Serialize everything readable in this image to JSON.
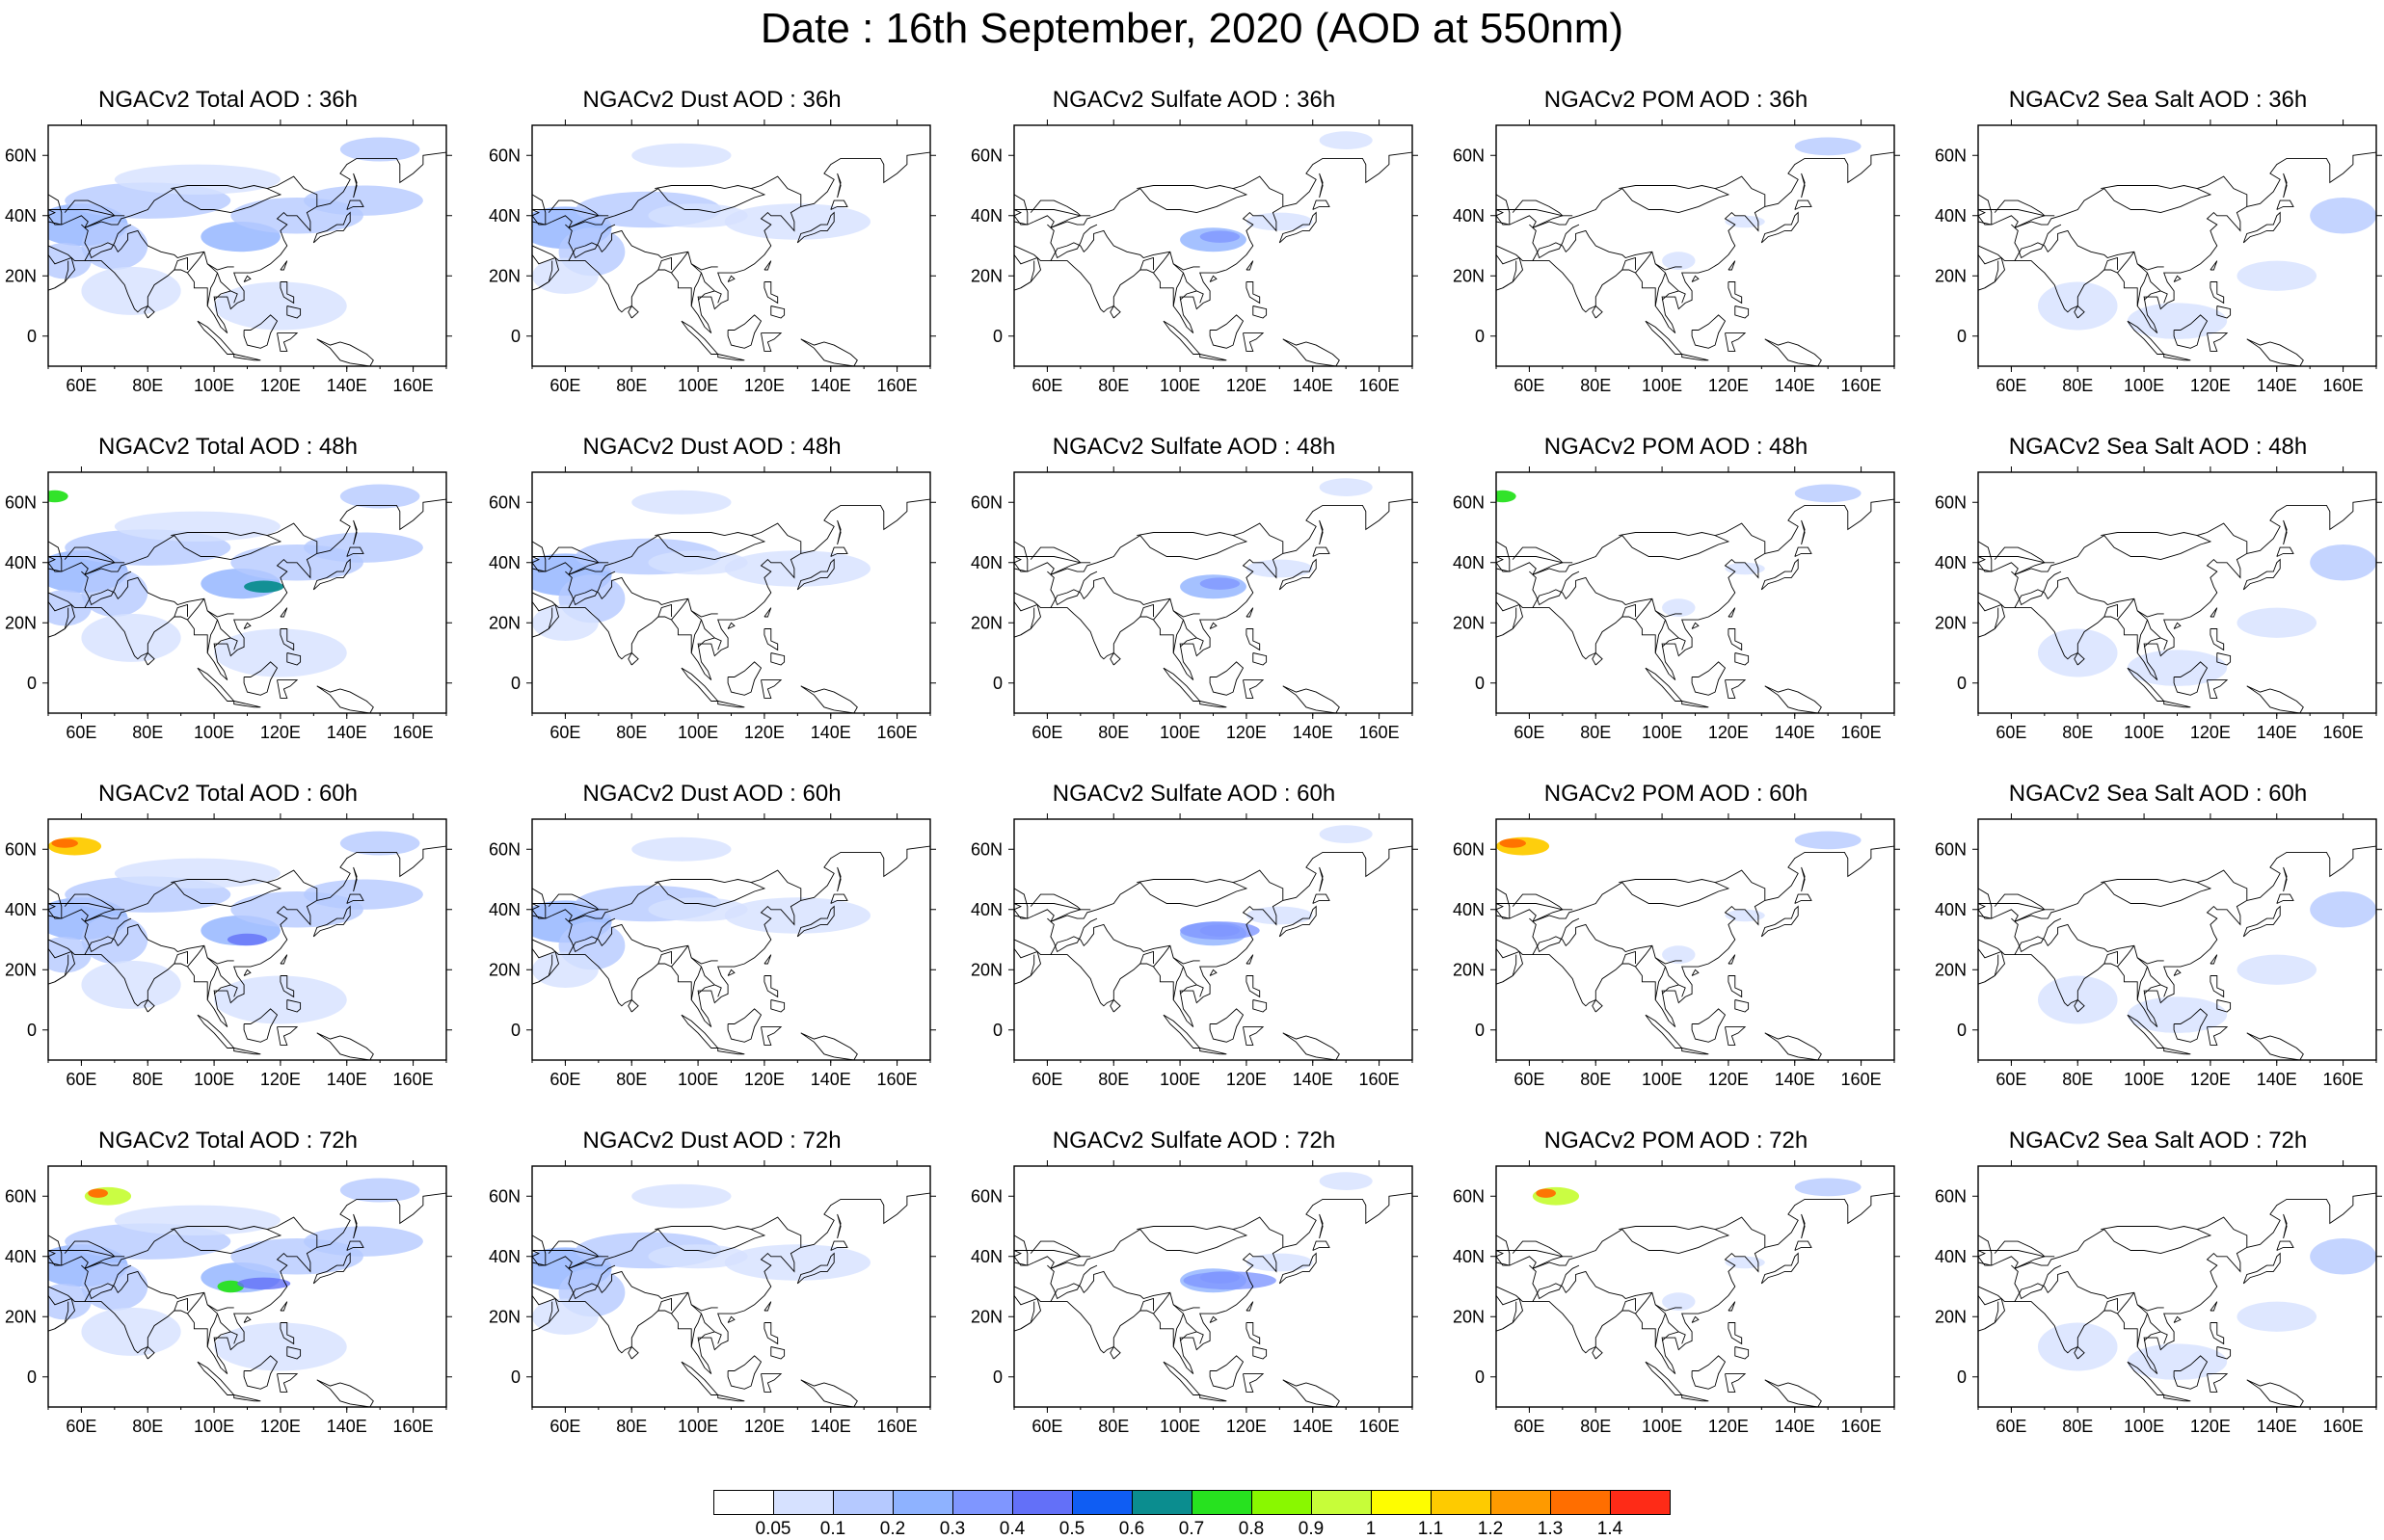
{
  "title": "Date : 16th September, 2020 (AOD at 550nm)",
  "map": {
    "lon_range": [
      50,
      170
    ],
    "lat_range": [
      -10,
      70
    ],
    "x_ticks": [
      "60E",
      "80E",
      "100E",
      "120E",
      "140E",
      "160E"
    ],
    "x_tick_values": [
      60,
      80,
      100,
      120,
      140,
      160
    ],
    "y_ticks": [
      "0",
      "20N",
      "40N",
      "60N"
    ],
    "y_tick_values": [
      0,
      20,
      40,
      60
    ]
  },
  "colorbar": {
    "labels": [
      "0.05",
      "0.1",
      "0.2",
      "0.3",
      "0.4",
      "0.5",
      "0.6",
      "0.7",
      "0.8",
      "0.9",
      "1",
      "1.1",
      "1.2",
      "1.3",
      "1.4"
    ],
    "colors": [
      "#ffffff",
      "#d6e1ff",
      "#b5c9ff",
      "#8eb2ff",
      "#7f96ff",
      "#6370f8",
      "#0f5df3",
      "#0b8d8f",
      "#27e21f",
      "#89f800",
      "#c7fd39",
      "#fefd00",
      "#fecb00",
      "#fe9a00",
      "#ff6e00",
      "#fe2b17"
    ]
  },
  "panels": [
    {
      "title": "NGACv2 Total AOD : 36h",
      "species": "total",
      "hour": 36
    },
    {
      "title": "NGACv2 Dust AOD : 36h",
      "species": "dust",
      "hour": 36
    },
    {
      "title": "NGACv2 Sulfate AOD : 36h",
      "species": "sulfate",
      "hour": 36
    },
    {
      "title": "NGACv2 POM AOD : 36h",
      "species": "pom",
      "hour": 36
    },
    {
      "title": "NGACv2 Sea Salt AOD : 36h",
      "species": "seasalt",
      "hour": 36
    },
    {
      "title": "NGACv2 Total AOD : 48h",
      "species": "total",
      "hour": 48
    },
    {
      "title": "NGACv2 Dust AOD : 48h",
      "species": "dust",
      "hour": 48
    },
    {
      "title": "NGACv2 Sulfate AOD : 48h",
      "species": "sulfate",
      "hour": 48
    },
    {
      "title": "NGACv2 POM AOD : 48h",
      "species": "pom",
      "hour": 48
    },
    {
      "title": "NGACv2 Sea Salt AOD : 48h",
      "species": "seasalt",
      "hour": 48
    },
    {
      "title": "NGACv2 Total AOD : 60h",
      "species": "total",
      "hour": 60
    },
    {
      "title": "NGACv2 Dust AOD : 60h",
      "species": "dust",
      "hour": 60
    },
    {
      "title": "NGACv2 Sulfate AOD : 60h",
      "species": "sulfate",
      "hour": 60
    },
    {
      "title": "NGACv2 POM AOD : 60h",
      "species": "pom",
      "hour": 60
    },
    {
      "title": "NGACv2 Sea Salt AOD : 60h",
      "species": "seasalt",
      "hour": 60
    },
    {
      "title": "NGACv2 Total AOD : 72h",
      "species": "total",
      "hour": 72
    },
    {
      "title": "NGACv2 Dust AOD : 72h",
      "species": "dust",
      "hour": 72
    },
    {
      "title": "NGACv2 Sulfate AOD : 72h",
      "species": "sulfate",
      "hour": 72
    },
    {
      "title": "NGACv2 POM AOD : 72h",
      "species": "pom",
      "hour": 72
    },
    {
      "title": "NGACv2 Sea Salt  AOD : 72h",
      "species": "seasalt",
      "hour": 72
    }
  ]
}
